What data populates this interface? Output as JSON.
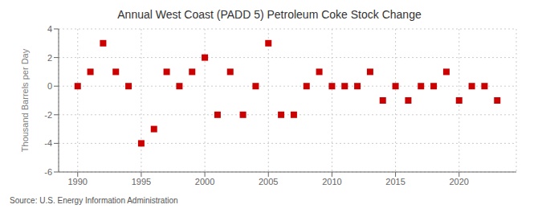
{
  "chart_data": {
    "type": "scatter",
    "title": "Annual West Coast (PADD 5) Petroleum Coke Stock Change",
    "ylabel": "Thousand Barrels per Day",
    "annotations": [
      "Source: U.S. Energy Information Administration"
    ],
    "x": [
      1990,
      1991,
      1992,
      1993,
      1994,
      1995,
      1996,
      1997,
      1998,
      1999,
      2000,
      2001,
      2002,
      2003,
      2004,
      2005,
      2006,
      2007,
      2008,
      2009,
      2010,
      2011,
      2012,
      2013,
      2014,
      2015,
      2016,
      2017,
      2018,
      2019,
      2020,
      2021,
      2022,
      2023
    ],
    "values": [
      0,
      1,
      3,
      1,
      0,
      -4,
      -3,
      1,
      0,
      1,
      2,
      -2,
      1,
      -2,
      0,
      3,
      -2,
      -2,
      0,
      1,
      0,
      0,
      0,
      1,
      -1,
      0,
      -1,
      0,
      0,
      1,
      -1,
      0,
      0,
      -1
    ],
    "color": "#cc0000",
    "marker": "square",
    "xlim": [
      1988.5,
      2024.5
    ],
    "xticks": [
      1990,
      1995,
      2000,
      2005,
      2010,
      2015,
      2020
    ],
    "ylim": [
      -6,
      4
    ],
    "yticks": [
      -6,
      -4,
      -2,
      0,
      2,
      4
    ],
    "grid": true
  }
}
